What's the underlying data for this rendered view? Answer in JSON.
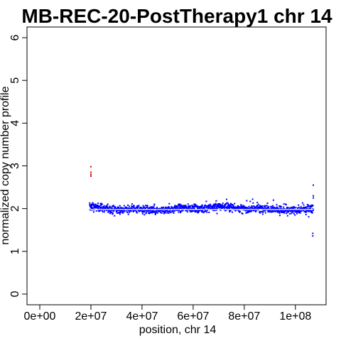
{
  "chart_data": {
    "type": "scatter",
    "title": "MB-REC-20-PostTherapy1 chr 14",
    "xlabel": "position, chr 14",
    "ylabel": "normalized copy number profile",
    "xlim": [
      -5000000,
      112000000
    ],
    "ylim": [
      -0.25,
      6.25
    ],
    "x_ticks": [
      0,
      20000000,
      40000000,
      60000000,
      80000000,
      100000000
    ],
    "x_tick_labels": [
      "0e+00",
      "2e+07",
      "4e+07",
      "6e+07",
      "8e+07",
      "1e+08"
    ],
    "y_ticks": [
      0,
      1,
      2,
      3,
      4,
      5,
      6
    ],
    "y_tick_labels": [
      "0",
      "1",
      "2",
      "3",
      "4",
      "5",
      "6"
    ],
    "grid": false,
    "colors": {
      "points": "#0000ff",
      "outliers": "#cc0000",
      "segment": "#ffffff",
      "axis": "#000000"
    },
    "data_range": {
      "x_start": 19500000,
      "x_end": 107000000,
      "typical_copy_number": 2.0,
      "spread": 0.1
    },
    "segment": {
      "x": [
        19500000,
        107000000
      ],
      "y": [
        1.98,
        1.98
      ]
    },
    "outliers_high": {
      "x": [
        20000000,
        20000000,
        20000000,
        20000000
      ],
      "y": [
        2.98,
        2.85,
        2.8,
        2.76
      ]
    },
    "outliers_edge": {
      "x": [
        107000000,
        107000000,
        107000000,
        106800000,
        106800000
      ],
      "y": [
        2.55,
        2.3,
        2.25,
        1.42,
        1.36
      ]
    }
  }
}
